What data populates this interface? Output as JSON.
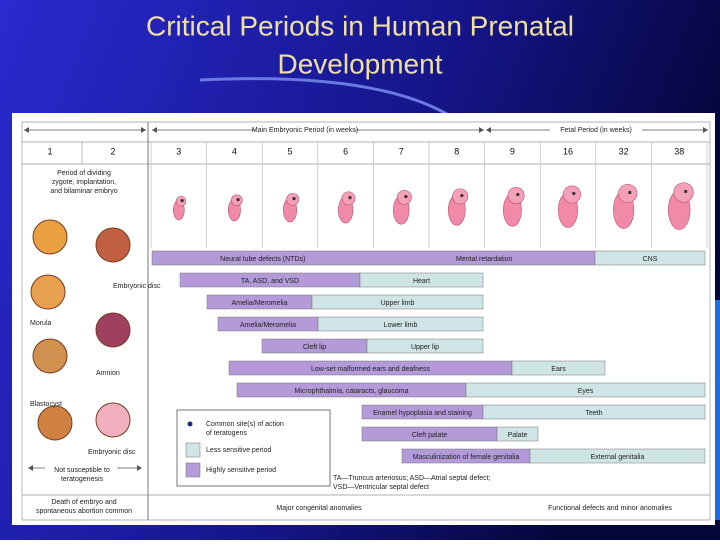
{
  "title": [
    "Critical Periods in Human Prenatal",
    "Development"
  ],
  "header": {
    "main_period": "Main Embryonic Period (in weeks)",
    "fetal_period": "Fetal Period (in weeks)"
  },
  "weeks": [
    "1",
    "2",
    "3",
    "4",
    "5",
    "6",
    "7",
    "8",
    "9",
    "16",
    "32",
    "38"
  ],
  "left_column": {
    "period_text": [
      "Period of dividing",
      "zygote, implantation,",
      "and bilaminar embryo"
    ],
    "image_labels": [
      "Embryonic disc",
      "Morula",
      "Amnion",
      "Blastocyst",
      "Embryonic disc"
    ],
    "not_susceptible": [
      "Not susceptible to",
      "teratogenesis"
    ],
    "death": [
      "Death of embryo and",
      "spontaneous abortion common"
    ]
  },
  "rows": [
    [
      {
        "kind": "high",
        "labels": [
          "Neural tube defects (NTDs)",
          "Mental retardation"
        ]
      },
      {
        "kind": "low",
        "labels": [
          "CNS"
        ]
      }
    ],
    [
      {
        "kind": "high",
        "labels": [
          "TA, ASD, and VSD"
        ]
      },
      {
        "kind": "low",
        "labels": [
          "Heart"
        ]
      }
    ],
    [
      {
        "kind": "high",
        "labels": [
          "Amelia/Meromelia"
        ]
      },
      {
        "kind": "low",
        "labels": [
          "Upper limb"
        ]
      }
    ],
    [
      {
        "kind": "high",
        "labels": [
          "Amelia/Meromelia"
        ]
      },
      {
        "kind": "low",
        "labels": [
          "Lower limb"
        ]
      }
    ],
    [
      {
        "kind": "high",
        "labels": [
          "Cleft lip"
        ]
      },
      {
        "kind": "low",
        "labels": [
          "Upper lip"
        ]
      }
    ],
    [
      {
        "kind": "high",
        "labels": [
          "Low-set malformed ears and deafness"
        ]
      },
      {
        "kind": "low",
        "labels": [
          "Ears"
        ]
      }
    ],
    [
      {
        "kind": "high",
        "labels": [
          "Microphthalmia, cataracts, glaucoma"
        ]
      },
      {
        "kind": "low",
        "labels": [
          "Eyes"
        ]
      }
    ],
    [
      {
        "kind": "high",
        "labels": [
          "Enamel hypoplasia and staining"
        ]
      },
      {
        "kind": "low",
        "labels": [
          "Teeth"
        ]
      }
    ],
    [
      {
        "kind": "high",
        "labels": [
          "Cleft palate"
        ]
      },
      {
        "kind": "low",
        "labels": [
          "Palate"
        ]
      }
    ],
    [
      {
        "kind": "high",
        "labels": [
          "Masculinization of female genitalia"
        ]
      },
      {
        "kind": "low",
        "labels": [
          "External genitalia"
        ]
      }
    ]
  ],
  "legend": {
    "site": [
      "Common site(s) of action",
      "of teratogens"
    ],
    "low": "Less sensitive period",
    "high": "Highly sensitive period"
  },
  "footnote": [
    "TA—Truncus arteriosus; ASD—Atrial septal defect;",
    "VSD—Ventricular septal defect"
  ],
  "bottom": {
    "major": "Major congenital anomalies",
    "functional": "Functional defects and minor anomalies"
  }
}
